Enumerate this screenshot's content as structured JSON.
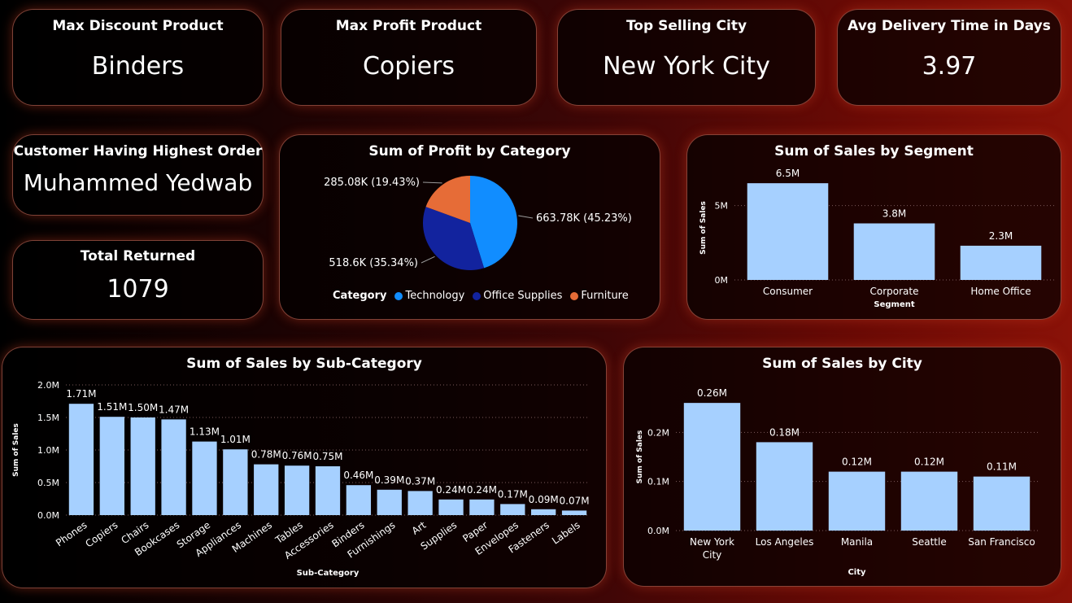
{
  "kpis": {
    "max_discount": {
      "title": "Max Discount Product",
      "value": "Binders"
    },
    "max_profit": {
      "title": "Max Profit Product",
      "value": "Copiers"
    },
    "top_city": {
      "title": "Top Selling City",
      "value": "New York City"
    },
    "avg_delivery": {
      "title": "Avg Delivery Time in Days",
      "value": "3.97"
    },
    "top_customer": {
      "title": "Customer Having Highest Order",
      "value": "Muhammed Yedwab"
    },
    "total_returned": {
      "title": "Total Returned",
      "value": "1079"
    }
  },
  "colors": {
    "bar": "#a6d0ff",
    "technology": "#118dff",
    "office_supplies": "#12239e",
    "furniture": "#e66c37"
  },
  "chart_data": [
    {
      "id": "profit_by_category",
      "type": "pie",
      "title": "Sum of Profit by Category",
      "legend_title": "Category",
      "legend_position": "bottom",
      "labels": [
        "Technology",
        "Office Supplies",
        "Furniture"
      ],
      "values": [
        663.78,
        518.6,
        285.08
      ],
      "data_labels": [
        "663.78K (45.23%)",
        "518.6K (35.34%)",
        "285.08K (19.43%)"
      ],
      "colors": [
        "#118dff",
        "#12239e",
        "#e66c37"
      ]
    },
    {
      "id": "sales_by_segment",
      "type": "bar",
      "title": "Sum of Sales by Segment",
      "xlabel": "Segment",
      "ylabel": "Sum of Sales",
      "categories": [
        "Consumer",
        "Corporate",
        "Home Office"
      ],
      "values": [
        6.5,
        3.8,
        2.3
      ],
      "data_labels": [
        "6.5M",
        "3.8M",
        "2.3M"
      ],
      "ylim": [
        0,
        7.0
      ],
      "yticks": [
        0,
        5
      ],
      "ytick_labels": [
        "0M",
        "5M"
      ],
      "grid": true
    },
    {
      "id": "sales_by_subcategory",
      "type": "bar",
      "title": "Sum of Sales by Sub-Category",
      "xlabel": "Sub-Category",
      "ylabel": "Sum of Sales",
      "categories": [
        "Phones",
        "Copiers",
        "Chairs",
        "Bookcases",
        "Storage",
        "Appliances",
        "Machines",
        "Tables",
        "Accessories",
        "Binders",
        "Furnishings",
        "Art",
        "Supplies",
        "Paper",
        "Envelopes",
        "Fasteners",
        "Labels"
      ],
      "values": [
        1.71,
        1.51,
        1.5,
        1.47,
        1.13,
        1.01,
        0.78,
        0.76,
        0.75,
        0.46,
        0.39,
        0.37,
        0.24,
        0.24,
        0.17,
        0.09,
        0.07
      ],
      "data_labels": [
        "1.71M",
        "1.51M",
        "1.50M",
        "1.47M",
        "1.13M",
        "1.01M",
        "0.78M",
        "0.76M",
        "0.75M",
        "0.46M",
        "0.39M",
        "0.37M",
        "0.24M",
        "0.24M",
        "0.17M",
        "0.09M",
        "0.07M"
      ],
      "ylim": [
        0,
        2.0
      ],
      "yticks": [
        0,
        0.5,
        1.0,
        1.5,
        2.0
      ],
      "ytick_labels": [
        "0.0M",
        "0.5M",
        "1.0M",
        "1.5M",
        "2.0M"
      ],
      "grid": true
    },
    {
      "id": "sales_by_city",
      "type": "bar",
      "title": "Sum of Sales by City",
      "xlabel": "City",
      "ylabel": "Sum of Sales",
      "categories": [
        "New York City",
        "Los Angeles",
        "Manila",
        "Seattle",
        "San Francisco"
      ],
      "category_lines": [
        [
          "New York",
          "City"
        ],
        [
          "Los Angeles"
        ],
        [
          "Manila"
        ],
        [
          "Seattle"
        ],
        [
          "San Francisco"
        ]
      ],
      "values": [
        0.26,
        0.18,
        0.12,
        0.12,
        0.11
      ],
      "data_labels": [
        "0.26M",
        "0.18M",
        "0.12M",
        "0.12M",
        "0.11M"
      ],
      "ylim": [
        0,
        0.3
      ],
      "yticks": [
        0,
        0.1,
        0.2
      ],
      "ytick_labels": [
        "0.0M",
        "0.1M",
        "0.2M"
      ],
      "grid": true
    }
  ]
}
